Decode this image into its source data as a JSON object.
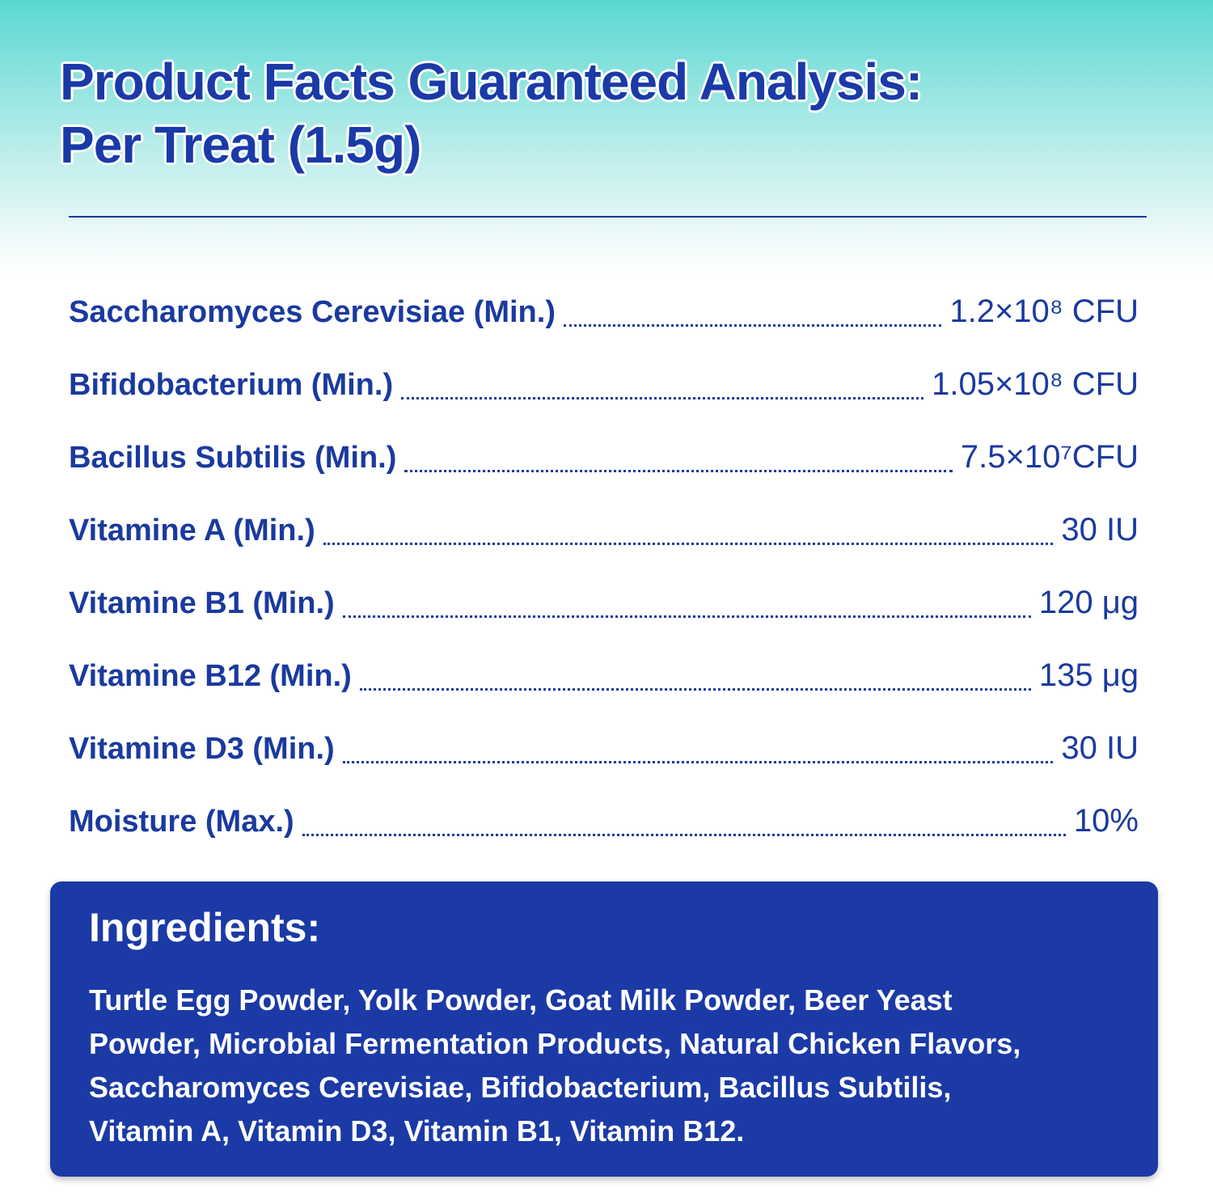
{
  "header": {
    "title_lines": [
      "Product Facts Guaranteed Analysis:",
      "Per Treat (1.5g)"
    ]
  },
  "analysis": {
    "rows": [
      {
        "label": "Saccharomyces Cerevisiae (Min.)",
        "value": "1.2×10⁸ CFU"
      },
      {
        "label": "Bifidobacterium (Min.)",
        "value": "1.05×10⁸ CFU"
      },
      {
        "label": "Bacillus Subtilis (Min.)",
        "value": "7.5×10⁷CFU"
      },
      {
        "label": "Vitamine A (Min.)",
        "value": "30 IU"
      },
      {
        "label": "Vitamine B1 (Min.)",
        "value": "120 μg"
      },
      {
        "label": "Vitamine B12 (Min.)",
        "value": "135 μg"
      },
      {
        "label": "Vitamine D3 (Min.)",
        "value": "30 IU"
      },
      {
        "label": "Moisture (Max.)",
        "value": "10%"
      }
    ]
  },
  "ingredients": {
    "heading": "Ingredients:",
    "lines": [
      "Turtle Egg Powder, Yolk Powder, Goat Milk Powder, Beer Yeast",
      "Powder, Microbial Fermentation Products, Natural Chicken Flavors,",
      "Saccharomyces Cerevisiae, Bifidobacterium, Bacillus Subtilis,",
      "Vitamin A, Vitamin D3, Vitamin B1, Vitamin B12."
    ]
  }
}
